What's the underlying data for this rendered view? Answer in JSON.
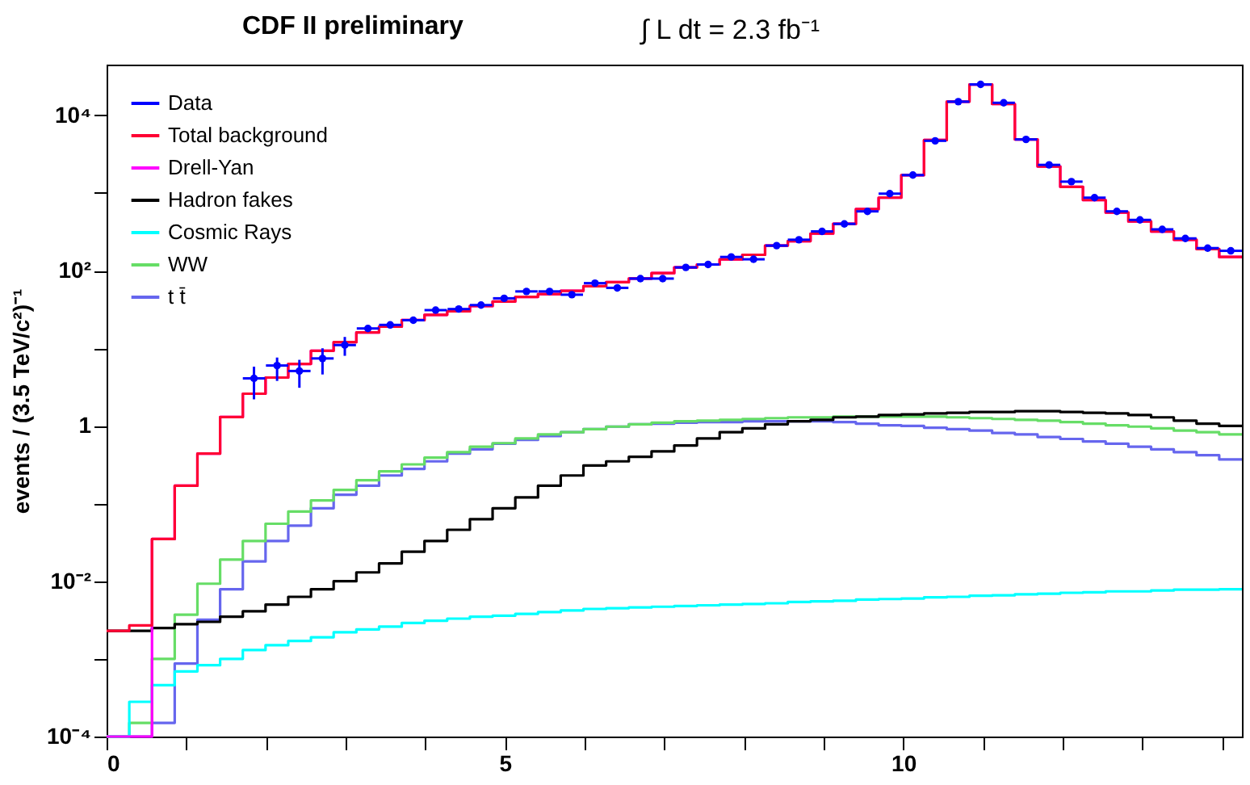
{
  "chart_data": {
    "type": "histogram",
    "title": "CDF II preliminary",
    "subtitle": "∫ L dt = 2.3 fb⁻¹",
    "ylabel": "events / (3.5 TeV/c²)⁻¹",
    "log": true,
    "legend": "top left",
    "xlim": [
      0,
      14.25
    ],
    "xticks": [
      0,
      {
        "value": 1,
        "label": null
      },
      {
        "value": 2,
        "label": null
      },
      {
        "value": 3,
        "label": null
      },
      {
        "value": 4,
        "label": null
      },
      5,
      {
        "value": 6,
        "label": null
      },
      {
        "value": 7,
        "label": null
      },
      {
        "value": 8,
        "label": null
      },
      {
        "value": 9,
        "label": null
      },
      10,
      {
        "value": 11,
        "label": null
      },
      {
        "value": 12,
        "label": null
      },
      {
        "value": 13,
        "label": null
      },
      {
        "value": 14,
        "label": null
      }
    ],
    "ylim": [
      0.0001,
      45000
    ],
    "yticks": [
      {
        "value": 0.0001,
        "label": "10⁻⁴"
      },
      {
        "value": 0.001,
        "label": null
      },
      {
        "value": 0.01,
        "label": "10⁻²"
      },
      {
        "value": 0.1,
        "label": null
      },
      1,
      {
        "value": 10,
        "label": null
      },
      {
        "value": 100,
        "label": "10²"
      },
      {
        "value": 1000,
        "label": null
      },
      {
        "value": 10000,
        "label": "10⁴"
      }
    ],
    "bins": [
      0,
      0.285,
      0.57,
      0.855,
      1.14,
      1.425,
      1.71,
      1.995,
      2.28,
      2.565,
      2.85,
      3.135,
      3.42,
      3.705,
      3.99,
      4.275,
      4.56,
      4.845,
      5.13,
      5.415,
      5.7,
      5.985,
      6.27,
      6.555,
      6.84,
      7.125,
      7.41,
      7.695,
      7.98,
      8.265,
      8.55,
      8.835,
      9.12,
      9.405,
      9.69,
      9.975,
      10.26,
      10.545,
      10.83,
      11.115,
      11.4,
      11.685,
      11.97,
      12.255,
      12.54,
      12.825,
      13.11,
      13.395,
      13.68,
      13.965,
      14.25
    ],
    "series": [
      {
        "name": "Data",
        "type": "scatter",
        "marker": "circle",
        "color": "#0000ff",
        "x": [
          1.85,
          2.14,
          2.42,
          2.71,
          2.99,
          3.28,
          3.56,
          3.85,
          4.13,
          4.42,
          4.7,
          4.99,
          5.27,
          5.56,
          5.84,
          6.13,
          6.41,
          6.7,
          6.98,
          7.27,
          7.55,
          7.84,
          8.12,
          8.41,
          8.69,
          8.98,
          9.26,
          9.55,
          9.83,
          10.12,
          10.4,
          10.69,
          10.97,
          11.26,
          11.54,
          11.83,
          12.11,
          12.4,
          12.68,
          12.97,
          13.25,
          13.54,
          13.82,
          14.11
        ],
        "values": [
          4.1,
          6.0,
          5.1,
          7.4,
          11,
          18,
          20,
          23,
          31,
          32,
          36,
          44,
          54,
          54,
          49,
          69,
          60,
          79,
          79,
          110,
          120,
          150,
          140,
          210,
          250,
          320,
          400,
          580,
          980,
          1700,
          4700,
          15000,
          25000,
          14500,
          4900,
          2300,
          1400,
          870,
          580,
          450,
          340,
          260,
          195,
          180
        ],
        "errors": [
          [
            2.2,
            5.8
          ],
          [
            3.8,
            7.6
          ],
          [
            3.1,
            7.1
          ],
          [
            4.6,
            10
          ],
          [
            8,
            14
          ],
          null,
          null,
          null,
          null,
          null,
          null,
          null,
          null,
          null,
          null,
          null,
          null,
          null,
          null,
          null,
          null,
          null,
          null,
          null,
          null,
          null,
          null,
          null,
          null,
          null,
          null,
          null,
          null,
          null,
          null,
          null,
          null,
          null,
          null,
          null,
          null,
          null,
          null,
          null
        ],
        "xerrors": [
          0.14,
          0.14,
          0.14,
          0.14,
          0.14,
          0.14,
          0.14,
          0.14,
          0.14,
          0.14,
          0.14,
          0.14,
          0.14,
          0.14,
          0.14,
          0.14,
          0.14,
          0.14,
          0.14,
          0.14,
          0.14,
          0.14,
          0.14,
          0.14,
          0.14,
          0.14,
          0.14,
          0.14,
          0.14,
          0.14,
          0.14,
          0.14,
          0.14,
          0.14,
          0.14,
          0.14,
          0.14,
          0.14,
          0.14,
          0.14,
          0.14,
          0.14,
          0.14,
          0.14
        ]
      },
      {
        "name": "Total background",
        "color": "#ff0033",
        "values": [
          0.0023,
          0.0027,
          0.035,
          0.17,
          0.44,
          1.3,
          2.6,
          4.2,
          6.3,
          9.3,
          12,
          16,
          19,
          23,
          27,
          30,
          35,
          40,
          46,
          50,
          55,
          63,
          71,
          79,
          93,
          110,
          120,
          140,
          160,
          210,
          240,
          300,
          400,
          620,
          870,
          1700,
          4800,
          15000,
          25000,
          14000,
          4900,
          2200,
          1200,
          810,
          560,
          430,
          320,
          250,
          190,
          150
        ]
      },
      {
        "name": "Drell-Yan",
        "color": "#ff00ff",
        "values": [
          0.0001,
          0.0001,
          0.035,
          0.17,
          0.44,
          1.3,
          2.6,
          4.2,
          6.3,
          9.3,
          12,
          16,
          19,
          23,
          27,
          30,
          35,
          40,
          46,
          50,
          55,
          63,
          71,
          79,
          93,
          110,
          120,
          140,
          160,
          210,
          240,
          300,
          400,
          620,
          870,
          1700,
          4800,
          15000,
          25000,
          14000,
          4900,
          2200,
          1200,
          810,
          560,
          430,
          320,
          250,
          190,
          150
        ]
      },
      {
        "name": "Hadron fakes",
        "color": "#000000",
        "values": [
          0.0023,
          0.0023,
          0.0025,
          0.0028,
          0.003,
          0.0035,
          0.0041,
          0.005,
          0.0063,
          0.0079,
          0.01,
          0.013,
          0.017,
          0.024,
          0.033,
          0.046,
          0.063,
          0.087,
          0.12,
          0.17,
          0.23,
          0.31,
          0.35,
          0.4,
          0.47,
          0.56,
          0.69,
          0.83,
          0.93,
          1.05,
          1.15,
          1.2,
          1.29,
          1.32,
          1.38,
          1.41,
          1.45,
          1.48,
          1.51,
          1.51,
          1.55,
          1.55,
          1.51,
          1.48,
          1.45,
          1.38,
          1.29,
          1.17,
          1.07,
          1.0
        ]
      },
      {
        "name": "Cosmic Rays",
        "color": "#00ffff",
        "values": [
          0.0001,
          0.00028,
          0.00046,
          0.00069,
          0.00083,
          0.001,
          0.0013,
          0.0015,
          0.0017,
          0.0019,
          0.0022,
          0.0024,
          0.0026,
          0.0029,
          0.0031,
          0.0033,
          0.0035,
          0.0036,
          0.0038,
          0.004,
          0.0042,
          0.0044,
          0.0045,
          0.0046,
          0.0047,
          0.0048,
          0.0049,
          0.005,
          0.0051,
          0.0052,
          0.0054,
          0.0055,
          0.0056,
          0.0058,
          0.0059,
          0.006,
          0.0062,
          0.0063,
          0.0065,
          0.0066,
          0.0068,
          0.0069,
          0.0071,
          0.0072,
          0.0074,
          0.0074,
          0.0076,
          0.0078,
          0.0078,
          0.0079
        ]
      },
      {
        "name": "WW",
        "color": "#66dd66",
        "values": [
          0.0001,
          0.00015,
          0.001,
          0.0037,
          0.0093,
          0.019,
          0.033,
          0.055,
          0.079,
          0.11,
          0.15,
          0.2,
          0.26,
          0.32,
          0.39,
          0.46,
          0.54,
          0.6,
          0.69,
          0.78,
          0.83,
          0.91,
          0.98,
          1.05,
          1.1,
          1.15,
          1.17,
          1.2,
          1.23,
          1.26,
          1.29,
          1.29,
          1.32,
          1.32,
          1.32,
          1.32,
          1.32,
          1.29,
          1.26,
          1.23,
          1.2,
          1.17,
          1.12,
          1.07,
          1.02,
          0.98,
          0.93,
          0.87,
          0.83,
          0.78
        ]
      },
      {
        "name": "t t̄",
        "color": "#6666ee",
        "values": [
          0.0001,
          0.0001,
          0.00015,
          0.00087,
          0.0032,
          0.0079,
          0.018,
          0.033,
          0.052,
          0.087,
          0.13,
          0.17,
          0.23,
          0.28,
          0.35,
          0.44,
          0.5,
          0.59,
          0.66,
          0.74,
          0.83,
          0.91,
          0.98,
          1.05,
          1.07,
          1.1,
          1.12,
          1.12,
          1.15,
          1.15,
          1.15,
          1.15,
          1.12,
          1.07,
          1.02,
          1.0,
          0.95,
          0.91,
          0.87,
          0.81,
          0.78,
          0.72,
          0.68,
          0.63,
          0.59,
          0.54,
          0.5,
          0.46,
          0.42,
          0.37
        ]
      }
    ]
  }
}
